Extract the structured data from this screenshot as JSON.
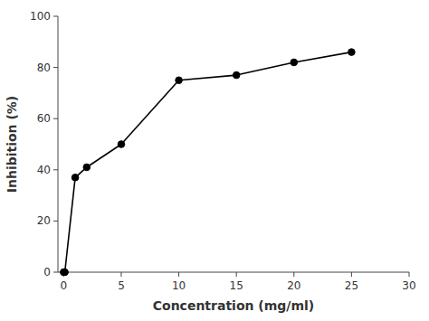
{
  "chart_data": {
    "type": "line",
    "xlabel": "Concentration (mg/ml)",
    "ylabel": "Inhibition (%)",
    "x": [
      0,
      0.1,
      1,
      2,
      5,
      10,
      15,
      20,
      25
    ],
    "values": [
      0,
      0,
      37,
      41,
      50,
      75,
      77,
      82,
      86
    ],
    "color": "#000000",
    "marker": "circle",
    "xlim": [
      -0.5,
      30
    ],
    "ylim": [
      0,
      100
    ],
    "xticks": [
      0,
      5,
      10,
      15,
      20,
      25,
      30
    ],
    "yticks": [
      0,
      20,
      40,
      60,
      80,
      100
    ],
    "grid": false
  }
}
